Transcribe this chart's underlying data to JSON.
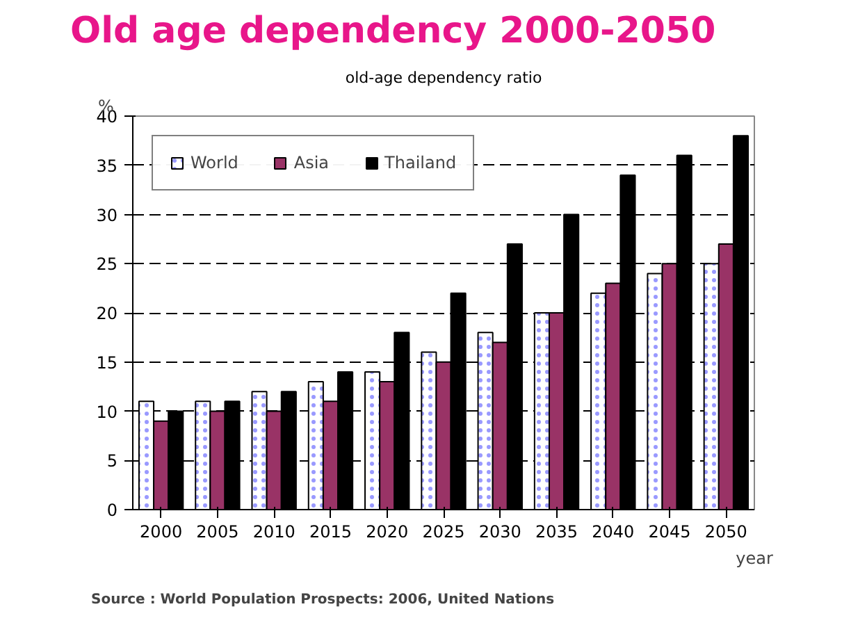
{
  "chart_data": {
    "type": "bar",
    "title": "Old age dependency 2000-2050",
    "subtitle": "old-age dependency ratio",
    "ylabel": "%",
    "xlabel": "year",
    "categories": [
      "2000",
      "2005",
      "2010",
      "2015",
      "2020",
      "2025",
      "2030",
      "2035",
      "2040",
      "2045",
      "2050"
    ],
    "series": [
      {
        "name": "World",
        "color": "#ffffff",
        "values": [
          11,
          11,
          12,
          13,
          14,
          16,
          18,
          20,
          22,
          24,
          25
        ]
      },
      {
        "name": "Asia",
        "color": "#993366",
        "values": [
          9,
          10,
          10,
          11,
          13,
          15,
          17,
          20,
          23,
          25,
          27
        ]
      },
      {
        "name": "Thailand",
        "color": "#000000",
        "values": [
          10,
          11,
          12,
          14,
          18,
          22,
          27,
          30,
          34,
          36,
          38
        ]
      }
    ],
    "ylim": [
      0,
      40
    ],
    "yticks": [
      0,
      5,
      10,
      15,
      20,
      25,
      30,
      35,
      40
    ],
    "grid": "y",
    "legend": "top left",
    "annotations": [
      "Source : World  Population Prospects: 2006, United Nations"
    ]
  }
}
